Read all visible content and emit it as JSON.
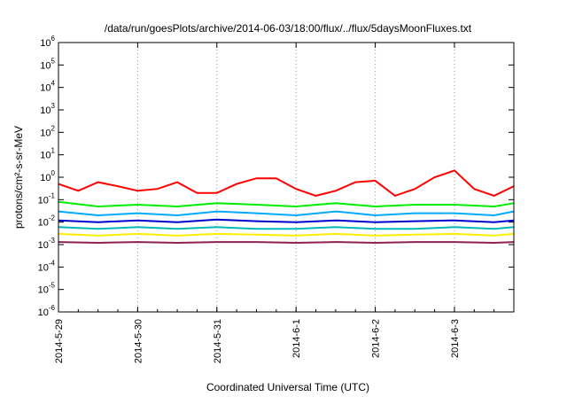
{
  "chart_data": {
    "type": "line",
    "title": "/data/run/goesPlots/archive/2014-06-03/18:00/flux/../flux/5daysMoonFluxes.txt",
    "xlabel": "Coordinated Universal Time (UTC)",
    "ylabel": "protons/cm²-s-sr-MeV",
    "yscale": "log",
    "ylim": [
      1e-06,
      1000000.0
    ],
    "xlim": [
      "2014-05-29",
      "2014-06-03 18:00"
    ],
    "grid": true,
    "y_ticks": [
      {
        "base": "10",
        "exp": "-6",
        "value": 1e-06
      },
      {
        "base": "10",
        "exp": "-5",
        "value": 1e-05
      },
      {
        "base": "10",
        "exp": "-4",
        "value": 0.0001
      },
      {
        "base": "10",
        "exp": "-3",
        "value": 0.001
      },
      {
        "base": "10",
        "exp": "-2",
        "value": 0.01
      },
      {
        "base": "10",
        "exp": "-1",
        "value": 0.1
      },
      {
        "base": "10",
        "exp": "0",
        "value": 1
      },
      {
        "base": "10",
        "exp": "1",
        "value": 10
      },
      {
        "base": "10",
        "exp": "2",
        "value": 100
      },
      {
        "base": "10",
        "exp": "3",
        "value": 1000
      },
      {
        "base": "10",
        "exp": "4",
        "value": 10000
      },
      {
        "base": "10",
        "exp": "5",
        "value": 100000
      },
      {
        "base": "10",
        "exp": "6",
        "value": 1000000
      }
    ],
    "x_ticks": [
      {
        "label": "2014-5-29",
        "date": "2014-05-29"
      },
      {
        "label": "2014-5-30",
        "date": "2014-05-30"
      },
      {
        "label": "2014-5-31",
        "date": "2014-05-31"
      },
      {
        "label": "2014-6-1",
        "date": "2014-06-01"
      },
      {
        "label": "2014-6-2",
        "date": "2014-06-02"
      },
      {
        "label": "2014-6-3",
        "date": "2014-06-03"
      }
    ],
    "series": [
      {
        "color": "#ff0000",
        "x": [
          "2014-05-29 00:00",
          "2014-05-29 06:00",
          "2014-05-29 12:00",
          "2014-05-29 18:00",
          "2014-05-30 00:00",
          "2014-05-30 06:00",
          "2014-05-30 12:00",
          "2014-05-30 18:00",
          "2014-05-31 00:00",
          "2014-05-31 06:00",
          "2014-05-31 12:00",
          "2014-05-31 18:00",
          "2014-06-01 00:00",
          "2014-06-01 06:00",
          "2014-06-01 12:00",
          "2014-06-01 18:00",
          "2014-06-02 00:00",
          "2014-06-02 06:00",
          "2014-06-02 12:00",
          "2014-06-02 18:00",
          "2014-06-03 00:00",
          "2014-06-03 06:00",
          "2014-06-03 12:00",
          "2014-06-03 18:00"
        ],
        "y": [
          0.5,
          0.25,
          0.6,
          0.4,
          0.25,
          0.3,
          0.6,
          0.2,
          0.2,
          0.5,
          0.9,
          0.9,
          0.3,
          0.15,
          0.25,
          0.6,
          0.7,
          0.15,
          0.3,
          1.0,
          2.0,
          0.3,
          0.15,
          0.4
        ]
      },
      {
        "color": "#00ee00",
        "x": [
          "2014-05-29 00:00",
          "2014-05-29 12:00",
          "2014-05-30 00:00",
          "2014-05-30 12:00",
          "2014-05-31 00:00",
          "2014-05-31 12:00",
          "2014-06-01 00:00",
          "2014-06-01 12:00",
          "2014-06-02 00:00",
          "2014-06-02 12:00",
          "2014-06-03 00:00",
          "2014-06-03 12:00",
          "2014-06-03 18:00"
        ],
        "y": [
          0.08,
          0.05,
          0.06,
          0.05,
          0.07,
          0.06,
          0.05,
          0.07,
          0.05,
          0.06,
          0.06,
          0.05,
          0.07
        ]
      },
      {
        "color": "#00aaff",
        "x": [
          "2014-05-29 00:00",
          "2014-05-29 12:00",
          "2014-05-30 00:00",
          "2014-05-30 12:00",
          "2014-05-31 00:00",
          "2014-05-31 12:00",
          "2014-06-01 00:00",
          "2014-06-01 12:00",
          "2014-06-02 00:00",
          "2014-06-02 12:00",
          "2014-06-03 00:00",
          "2014-06-03 12:00",
          "2014-06-03 18:00"
        ],
        "y": [
          0.03,
          0.02,
          0.025,
          0.02,
          0.03,
          0.025,
          0.02,
          0.03,
          0.02,
          0.025,
          0.025,
          0.02,
          0.03
        ]
      },
      {
        "color": "#0000cc",
        "x": [
          "2014-05-29 00:00",
          "2014-05-29 12:00",
          "2014-05-30 00:00",
          "2014-05-30 12:00",
          "2014-05-31 00:00",
          "2014-05-31 12:00",
          "2014-06-01 00:00",
          "2014-06-01 12:00",
          "2014-06-02 00:00",
          "2014-06-02 12:00",
          "2014-06-03 00:00",
          "2014-06-03 12:00",
          "2014-06-03 18:00"
        ],
        "y": [
          0.012,
          0.01,
          0.012,
          0.01,
          0.013,
          0.011,
          0.01,
          0.012,
          0.01,
          0.011,
          0.012,
          0.01,
          0.012
        ]
      },
      {
        "color": "#00b8b8",
        "x": [
          "2014-05-29 00:00",
          "2014-05-29 12:00",
          "2014-05-30 00:00",
          "2014-05-30 12:00",
          "2014-05-31 00:00",
          "2014-05-31 12:00",
          "2014-06-01 00:00",
          "2014-06-01 12:00",
          "2014-06-02 00:00",
          "2014-06-02 12:00",
          "2014-06-03 00:00",
          "2014-06-03 12:00",
          "2014-06-03 18:00"
        ],
        "y": [
          0.006,
          0.005,
          0.006,
          0.005,
          0.006,
          0.005,
          0.005,
          0.006,
          0.005,
          0.005,
          0.006,
          0.005,
          0.006
        ]
      },
      {
        "color": "#ffee00",
        "x": [
          "2014-05-29 00:00",
          "2014-05-29 12:00",
          "2014-05-30 00:00",
          "2014-05-30 12:00",
          "2014-05-31 00:00",
          "2014-05-31 12:00",
          "2014-06-01 00:00",
          "2014-06-01 12:00",
          "2014-06-02 00:00",
          "2014-06-02 12:00",
          "2014-06-03 00:00",
          "2014-06-03 12:00",
          "2014-06-03 18:00"
        ],
        "y": [
          0.003,
          0.0025,
          0.003,
          0.0025,
          0.003,
          0.0028,
          0.0025,
          0.003,
          0.0025,
          0.0028,
          0.003,
          0.0025,
          0.003
        ]
      },
      {
        "color": "#8b2252",
        "x": [
          "2014-05-29 00:00",
          "2014-05-29 12:00",
          "2014-05-30 00:00",
          "2014-05-30 12:00",
          "2014-05-31 00:00",
          "2014-05-31 12:00",
          "2014-06-01 00:00",
          "2014-06-01 12:00",
          "2014-06-02 00:00",
          "2014-06-02 12:00",
          "2014-06-03 00:00",
          "2014-06-03 12:00",
          "2014-06-03 18:00"
        ],
        "y": [
          0.0013,
          0.0012,
          0.0013,
          0.0012,
          0.0013,
          0.0013,
          0.0012,
          0.0013,
          0.0012,
          0.0013,
          0.0013,
          0.0012,
          0.0013
        ]
      }
    ]
  }
}
